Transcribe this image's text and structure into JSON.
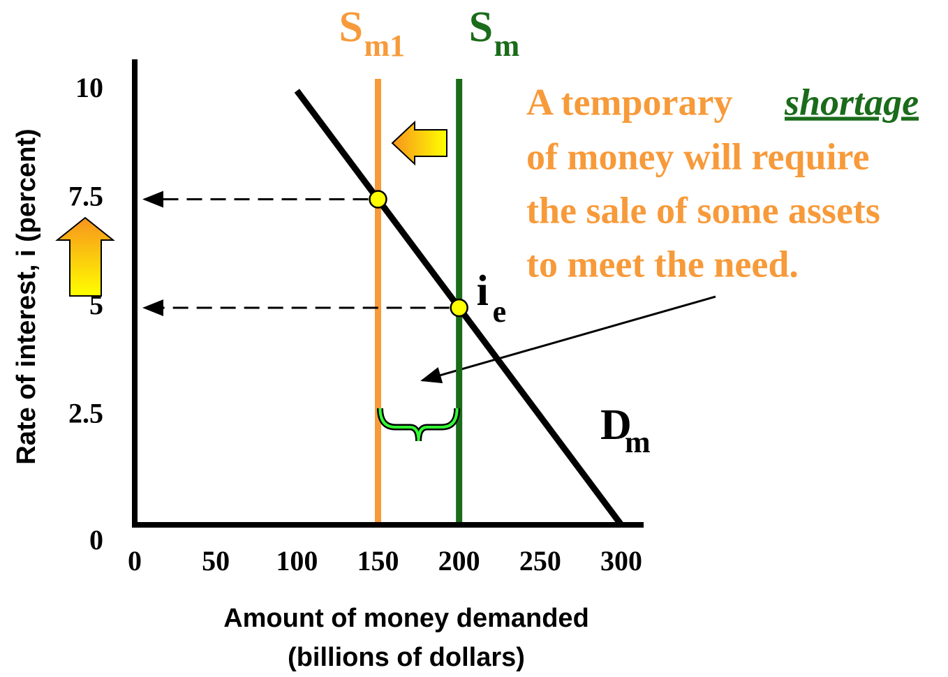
{
  "chart_data": {
    "type": "line",
    "y_axis_label": "Rate of interest, i (percent)",
    "x_axis_label": [
      "Amount of money demanded",
      "(billions of dollars)"
    ],
    "xlim": [
      0,
      300
    ],
    "xticks": [
      0,
      50,
      100,
      150,
      200,
      250,
      300
    ],
    "ylim": [
      0,
      10
    ],
    "yticks": [
      0,
      2.5,
      5,
      7.5,
      10
    ],
    "series": [
      {
        "name": "D",
        "name_sub": "m",
        "color": "#000000",
        "x": [
          100,
          300
        ],
        "values": [
          10,
          0
        ]
      }
    ],
    "vlines": [
      {
        "name": "S",
        "name_sub": "m1",
        "color": "#f79a3a",
        "x": 150
      },
      {
        "name": "S",
        "name_sub": "m",
        "color": "#1a6b1a",
        "x": 200
      }
    ],
    "points": [
      {
        "x": 150,
        "y": 7.5
      },
      {
        "x": 200,
        "y": 5,
        "label": "i",
        "label_sub": "e"
      }
    ],
    "annotation": {
      "lead": "A temporary",
      "emphasis": "shortage",
      "lines": [
        "of money will require",
        "the sale of some assets",
        "to meet the need."
      ]
    }
  }
}
